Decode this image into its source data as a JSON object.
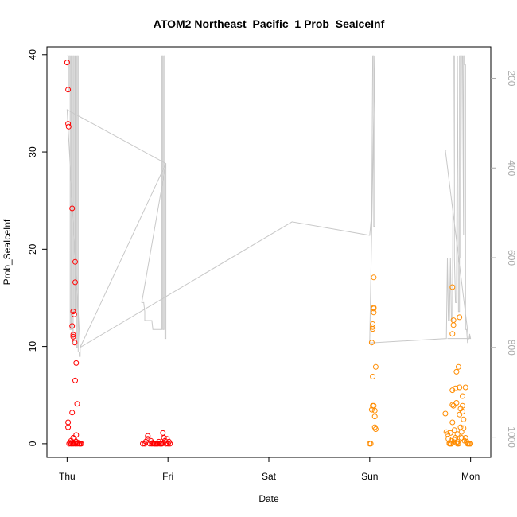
{
  "chart_data": {
    "type": "scatter",
    "title": "ATOM2 Northeast_Pacific_1 Prob_SeaIceInf",
    "xlabel": "Date",
    "ylabel": "Prob_SeaIceInf",
    "x_ticks": [
      "Thu",
      "Fri",
      "Sat",
      "Sun",
      "Mon"
    ],
    "xlim_days": [
      -0.2,
      4.2
    ],
    "ylim": [
      -1.4,
      40.8
    ],
    "y_ticks": [
      0,
      10,
      20,
      30,
      40
    ],
    "y2_ticks": [
      200,
      400,
      600,
      800,
      1000
    ],
    "y2lim_reversed": [
      1045,
      130
    ],
    "grid": false,
    "colors": {
      "early": "#ff0000",
      "late": "#ff8c00",
      "depth_line": "#c8c8c8"
    },
    "series": [
      {
        "color": "#ff0000",
        "points": [
          [
            0.0,
            39.2
          ],
          [
            0.01,
            36.4
          ],
          [
            0.01,
            32.9
          ],
          [
            0.015,
            32.6
          ],
          [
            0.05,
            24.2
          ],
          [
            0.08,
            18.7
          ],
          [
            0.08,
            16.6
          ],
          [
            0.06,
            13.6
          ],
          [
            0.07,
            13.3
          ],
          [
            0.05,
            12.1
          ],
          [
            0.06,
            11.2
          ],
          [
            0.06,
            11.0
          ],
          [
            0.075,
            10.4
          ],
          [
            0.09,
            8.3
          ],
          [
            0.08,
            6.5
          ],
          [
            0.1,
            4.1
          ],
          [
            0.05,
            3.2
          ],
          [
            0.01,
            2.2
          ],
          [
            0.01,
            1.7
          ],
          [
            0.09,
            0.9
          ],
          [
            0.07,
            0.5
          ],
          [
            0.06,
            0.6
          ],
          [
            0.04,
            0.3
          ],
          [
            0.03,
            0.1
          ],
          [
            0.02,
            0
          ],
          [
            0.04,
            0
          ],
          [
            0.06,
            0
          ],
          [
            0.08,
            0
          ],
          [
            0.1,
            0
          ],
          [
            0.12,
            0
          ],
          [
            0.13,
            0
          ],
          [
            0.14,
            0
          ],
          [
            0.09,
            0.2
          ],
          [
            0.11,
            0.1
          ],
          [
            0.05,
            0.05
          ],
          [
            0.75,
            0
          ],
          [
            0.77,
            0
          ],
          [
            0.78,
            0.2
          ],
          [
            0.8,
            0.5
          ],
          [
            0.8,
            0.8
          ],
          [
            0.82,
            0
          ],
          [
            0.83,
            0.3
          ],
          [
            0.84,
            0
          ],
          [
            0.85,
            0.1
          ],
          [
            0.86,
            0
          ],
          [
            0.87,
            0
          ],
          [
            0.88,
            0
          ],
          [
            0.89,
            0
          ],
          [
            0.9,
            0
          ],
          [
            0.91,
            0.2
          ],
          [
            0.92,
            0
          ],
          [
            0.93,
            0
          ],
          [
            0.94,
            0
          ],
          [
            0.95,
            1.1
          ],
          [
            0.96,
            0.6
          ],
          [
            0.97,
            0.3
          ],
          [
            0.98,
            0
          ],
          [
            0.99,
            0.5
          ],
          [
            1.0,
            0
          ],
          [
            1.01,
            0.2
          ],
          [
            1.02,
            0
          ]
        ]
      },
      {
        "color": "#ff8c00",
        "points": [
          [
            3.0,
            0
          ],
          [
            3.01,
            0
          ],
          [
            3.02,
            10.4
          ],
          [
            3.03,
            11.8
          ],
          [
            3.03,
            12.0
          ],
          [
            3.03,
            12.3
          ],
          [
            3.04,
            13.5
          ],
          [
            3.04,
            13.9
          ],
          [
            3.04,
            14.0
          ],
          [
            3.04,
            17.1
          ],
          [
            3.02,
            3.5
          ],
          [
            3.03,
            3.9
          ],
          [
            3.04,
            3.9
          ],
          [
            3.05,
            3.4
          ],
          [
            3.05,
            2.8
          ],
          [
            3.06,
            7.9
          ],
          [
            3.03,
            6.9
          ],
          [
            3.05,
            1.7
          ],
          [
            3.06,
            1.5
          ],
          [
            3.75,
            3.1
          ],
          [
            3.76,
            1.2
          ],
          [
            3.77,
            1.0
          ],
          [
            3.78,
            0.5
          ],
          [
            3.79,
            0.1
          ],
          [
            3.8,
            0
          ],
          [
            3.81,
            0.3
          ],
          [
            3.82,
            2.2
          ],
          [
            3.82,
            4.0
          ],
          [
            3.82,
            5.5
          ],
          [
            3.83,
            3.9
          ],
          [
            3.83,
            12.2
          ],
          [
            3.83,
            12.7
          ],
          [
            3.82,
            11.3
          ],
          [
            3.82,
            16.1
          ],
          [
            3.84,
            1.4
          ],
          [
            3.84,
            0.4
          ],
          [
            3.85,
            0.6
          ],
          [
            3.85,
            5.7
          ],
          [
            3.86,
            7.4
          ],
          [
            3.86,
            4.2
          ],
          [
            3.87,
            1.0
          ],
          [
            3.87,
            0.2
          ],
          [
            3.88,
            0
          ],
          [
            3.88,
            7.9
          ],
          [
            3.89,
            13.0
          ],
          [
            3.89,
            5.8
          ],
          [
            3.89,
            3.0
          ],
          [
            3.9,
            3.6
          ],
          [
            3.9,
            1.7
          ],
          [
            3.91,
            1.2
          ],
          [
            3.91,
            0.6
          ],
          [
            3.92,
            3.9
          ],
          [
            3.92,
            3.3
          ],
          [
            3.92,
            4.9
          ],
          [
            3.93,
            2.5
          ],
          [
            3.93,
            1.6
          ],
          [
            3.94,
            0.3
          ],
          [
            3.95,
            5.8
          ],
          [
            3.95,
            0.6
          ],
          [
            3.96,
            0.2
          ],
          [
            3.97,
            0
          ],
          [
            3.98,
            0
          ],
          [
            3.99,
            0
          ],
          [
            4.0,
            0
          ],
          [
            3.79,
            0
          ],
          [
            3.8,
            1.1
          ],
          [
            3.81,
            0
          ],
          [
            3.86,
            0.1
          ],
          [
            3.87,
            0
          ]
        ]
      }
    ],
    "depth_line": {
      "color": "#c8c8c8",
      "points": [
        [
          0.0,
          150
        ],
        [
          0.01,
          150
        ],
        [
          0.01,
          230
        ],
        [
          0.02,
          230
        ],
        [
          0.02,
          150
        ],
        [
          0.03,
          150
        ],
        [
          0.03,
          760
        ],
        [
          0.04,
          760
        ],
        [
          0.04,
          150
        ],
        [
          0.05,
          150
        ],
        [
          0.05,
          790
        ],
        [
          0.06,
          790
        ],
        [
          0.06,
          150
        ],
        [
          0.07,
          150
        ],
        [
          0.07,
          720
        ],
        [
          0.08,
          720
        ],
        [
          0.08,
          150
        ],
        [
          0.09,
          150
        ],
        [
          0.09,
          800
        ],
        [
          0.1,
          800
        ],
        [
          0.1,
          150
        ],
        [
          0.11,
          150
        ],
        [
          0.11,
          810
        ],
        [
          0.12,
          810
        ],
        [
          0.12,
          820
        ],
        [
          0.13,
          820
        ],
        [
          0.13,
          800
        ],
        [
          0.0,
          270
        ],
        [
          0.98,
          390
        ],
        [
          0.74,
          700
        ],
        [
          0.76,
          700
        ],
        [
          0.77,
          720
        ],
        [
          0.77,
          740
        ],
        [
          0.84,
          740
        ],
        [
          0.85,
          760
        ],
        [
          0.93,
          760
        ],
        [
          0.94,
          760
        ],
        [
          0.94,
          150
        ],
        [
          0.95,
          150
        ],
        [
          0.95,
          760
        ],
        [
          0.96,
          760
        ],
        [
          0.96,
          150
        ],
        [
          0.97,
          150
        ],
        [
          0.97,
          780
        ],
        [
          0.98,
          780
        ],
        [
          0.98,
          390
        ],
        [
          0.13,
          800
        ],
        [
          2.23,
          520
        ],
        [
          3.0,
          550
        ],
        [
          3.02,
          500
        ],
        [
          3.03,
          150
        ],
        [
          3.04,
          150
        ],
        [
          3.04,
          530
        ],
        [
          3.05,
          530
        ],
        [
          3.05,
          320
        ],
        [
          3.05,
          150
        ],
        [
          3.0,
          790
        ],
        [
          3.76,
          780
        ],
        [
          3.77,
          600
        ],
        [
          3.78,
          740
        ],
        [
          3.79,
          740
        ],
        [
          3.8,
          600
        ],
        [
          3.81,
          740
        ],
        [
          3.82,
          740
        ],
        [
          3.83,
          150
        ],
        [
          3.84,
          150
        ],
        [
          3.84,
          600
        ],
        [
          3.85,
          700
        ],
        [
          3.86,
          700
        ],
        [
          3.87,
          150
        ],
        [
          3.88,
          720
        ],
        [
          3.89,
          720
        ],
        [
          3.89,
          150
        ],
        [
          3.9,
          150
        ],
        [
          3.9,
          600
        ],
        [
          3.91,
          150
        ],
        [
          3.92,
          150
        ],
        [
          3.93,
          550
        ],
        [
          3.93,
          150
        ],
        [
          3.94,
          150
        ],
        [
          3.94,
          170
        ],
        [
          3.95,
          170
        ],
        [
          3.95,
          760
        ],
        [
          3.96,
          760
        ],
        [
          3.97,
          790
        ],
        [
          3.98,
          780
        ],
        [
          3.99,
          780
        ],
        [
          3.99,
          770
        ],
        [
          4.0,
          780
        ],
        [
          3.77,
          780
        ],
        [
          3.98,
          780
        ],
        [
          3.75,
          360
        ],
        [
          3.76,
          360
        ]
      ]
    }
  }
}
